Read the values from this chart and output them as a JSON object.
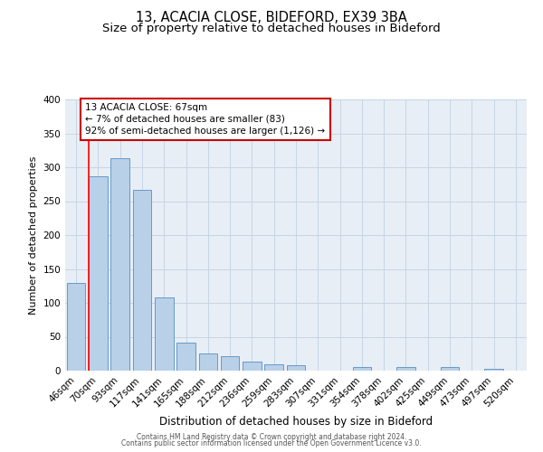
{
  "title": "13, ACACIA CLOSE, BIDEFORD, EX39 3BA",
  "subtitle": "Size of property relative to detached houses in Bideford",
  "xlabel": "Distribution of detached houses by size in Bideford",
  "ylabel": "Number of detached properties",
  "bar_labels": [
    "46sqm",
    "70sqm",
    "93sqm",
    "117sqm",
    "141sqm",
    "165sqm",
    "188sqm",
    "212sqm",
    "236sqm",
    "259sqm",
    "283sqm",
    "307sqm",
    "331sqm",
    "354sqm",
    "378sqm",
    "402sqm",
    "425sqm",
    "449sqm",
    "473sqm",
    "497sqm",
    "520sqm"
  ],
  "bar_values": [
    130,
    287,
    313,
    267,
    108,
    41,
    25,
    21,
    13,
    9,
    8,
    0,
    0,
    5,
    0,
    6,
    0,
    6,
    0,
    3,
    0
  ],
  "bar_color": "#b8d0e8",
  "bar_edge_color": "#6699cc",
  "ylim": [
    0,
    400
  ],
  "yticks": [
    0,
    50,
    100,
    150,
    200,
    250,
    300,
    350,
    400
  ],
  "annotation_line1": "13 ACACIA CLOSE: 67sqm",
  "annotation_line2": "← 7% of detached houses are smaller (83)",
  "annotation_line3": "92% of semi-detached houses are larger (1,126) →",
  "annotation_box_color": "#ffffff",
  "annotation_box_edge_color": "#cc0000",
  "red_line_x": 0.575,
  "footer_line1": "Contains HM Land Registry data © Crown copyright and database right 2024.",
  "footer_line2": "Contains public sector information licensed under the Open Government Licence v3.0.",
  "background_color": "#ffffff",
  "axes_bg_color": "#e8eef5",
  "grid_color": "#c5d5e5",
  "title_fontsize": 10.5,
  "subtitle_fontsize": 9.5,
  "ylabel_fontsize": 8,
  "xlabel_fontsize": 8.5,
  "tick_fontsize": 7.5,
  "annotation_fontsize": 7.5,
  "footer_fontsize": 5.5
}
